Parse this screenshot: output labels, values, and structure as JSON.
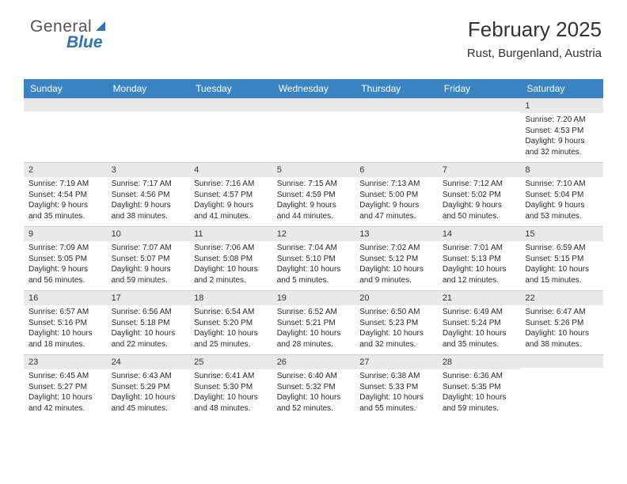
{
  "logo": {
    "text1": "General",
    "text2": "Blue"
  },
  "title": "February 2025",
  "subtitle": "Rust, Burgenland, Austria",
  "colors": {
    "header_bg": "#3b84c4",
    "header_fg": "#ffffff",
    "daynum_bg": "#e9e9e9",
    "page_bg": "#ffffff",
    "logo_blue": "#2d73b5"
  },
  "day_names": [
    "Sunday",
    "Monday",
    "Tuesday",
    "Wednesday",
    "Thursday",
    "Friday",
    "Saturday"
  ],
  "weeks": [
    [
      {
        "n": "",
        "sr": "",
        "ss": "",
        "dl": ""
      },
      {
        "n": "",
        "sr": "",
        "ss": "",
        "dl": ""
      },
      {
        "n": "",
        "sr": "",
        "ss": "",
        "dl": ""
      },
      {
        "n": "",
        "sr": "",
        "ss": "",
        "dl": ""
      },
      {
        "n": "",
        "sr": "",
        "ss": "",
        "dl": ""
      },
      {
        "n": "",
        "sr": "",
        "ss": "",
        "dl": ""
      },
      {
        "n": "1",
        "sr": "Sunrise: 7:20 AM",
        "ss": "Sunset: 4:53 PM",
        "dl": "Daylight: 9 hours and 32 minutes."
      }
    ],
    [
      {
        "n": "2",
        "sr": "Sunrise: 7:19 AM",
        "ss": "Sunset: 4:54 PM",
        "dl": "Daylight: 9 hours and 35 minutes."
      },
      {
        "n": "3",
        "sr": "Sunrise: 7:17 AM",
        "ss": "Sunset: 4:56 PM",
        "dl": "Daylight: 9 hours and 38 minutes."
      },
      {
        "n": "4",
        "sr": "Sunrise: 7:16 AM",
        "ss": "Sunset: 4:57 PM",
        "dl": "Daylight: 9 hours and 41 minutes."
      },
      {
        "n": "5",
        "sr": "Sunrise: 7:15 AM",
        "ss": "Sunset: 4:59 PM",
        "dl": "Daylight: 9 hours and 44 minutes."
      },
      {
        "n": "6",
        "sr": "Sunrise: 7:13 AM",
        "ss": "Sunset: 5:00 PM",
        "dl": "Daylight: 9 hours and 47 minutes."
      },
      {
        "n": "7",
        "sr": "Sunrise: 7:12 AM",
        "ss": "Sunset: 5:02 PM",
        "dl": "Daylight: 9 hours and 50 minutes."
      },
      {
        "n": "8",
        "sr": "Sunrise: 7:10 AM",
        "ss": "Sunset: 5:04 PM",
        "dl": "Daylight: 9 hours and 53 minutes."
      }
    ],
    [
      {
        "n": "9",
        "sr": "Sunrise: 7:09 AM",
        "ss": "Sunset: 5:05 PM",
        "dl": "Daylight: 9 hours and 56 minutes."
      },
      {
        "n": "10",
        "sr": "Sunrise: 7:07 AM",
        "ss": "Sunset: 5:07 PM",
        "dl": "Daylight: 9 hours and 59 minutes."
      },
      {
        "n": "11",
        "sr": "Sunrise: 7:06 AM",
        "ss": "Sunset: 5:08 PM",
        "dl": "Daylight: 10 hours and 2 minutes."
      },
      {
        "n": "12",
        "sr": "Sunrise: 7:04 AM",
        "ss": "Sunset: 5:10 PM",
        "dl": "Daylight: 10 hours and 5 minutes."
      },
      {
        "n": "13",
        "sr": "Sunrise: 7:02 AM",
        "ss": "Sunset: 5:12 PM",
        "dl": "Daylight: 10 hours and 9 minutes."
      },
      {
        "n": "14",
        "sr": "Sunrise: 7:01 AM",
        "ss": "Sunset: 5:13 PM",
        "dl": "Daylight: 10 hours and 12 minutes."
      },
      {
        "n": "15",
        "sr": "Sunrise: 6:59 AM",
        "ss": "Sunset: 5:15 PM",
        "dl": "Daylight: 10 hours and 15 minutes."
      }
    ],
    [
      {
        "n": "16",
        "sr": "Sunrise: 6:57 AM",
        "ss": "Sunset: 5:16 PM",
        "dl": "Daylight: 10 hours and 18 minutes."
      },
      {
        "n": "17",
        "sr": "Sunrise: 6:56 AM",
        "ss": "Sunset: 5:18 PM",
        "dl": "Daylight: 10 hours and 22 minutes."
      },
      {
        "n": "18",
        "sr": "Sunrise: 6:54 AM",
        "ss": "Sunset: 5:20 PM",
        "dl": "Daylight: 10 hours and 25 minutes."
      },
      {
        "n": "19",
        "sr": "Sunrise: 6:52 AM",
        "ss": "Sunset: 5:21 PM",
        "dl": "Daylight: 10 hours and 28 minutes."
      },
      {
        "n": "20",
        "sr": "Sunrise: 6:50 AM",
        "ss": "Sunset: 5:23 PM",
        "dl": "Daylight: 10 hours and 32 minutes."
      },
      {
        "n": "21",
        "sr": "Sunrise: 6:49 AM",
        "ss": "Sunset: 5:24 PM",
        "dl": "Daylight: 10 hours and 35 minutes."
      },
      {
        "n": "22",
        "sr": "Sunrise: 6:47 AM",
        "ss": "Sunset: 5:26 PM",
        "dl": "Daylight: 10 hours and 38 minutes."
      }
    ],
    [
      {
        "n": "23",
        "sr": "Sunrise: 6:45 AM",
        "ss": "Sunset: 5:27 PM",
        "dl": "Daylight: 10 hours and 42 minutes."
      },
      {
        "n": "24",
        "sr": "Sunrise: 6:43 AM",
        "ss": "Sunset: 5:29 PM",
        "dl": "Daylight: 10 hours and 45 minutes."
      },
      {
        "n": "25",
        "sr": "Sunrise: 6:41 AM",
        "ss": "Sunset: 5:30 PM",
        "dl": "Daylight: 10 hours and 48 minutes."
      },
      {
        "n": "26",
        "sr": "Sunrise: 6:40 AM",
        "ss": "Sunset: 5:32 PM",
        "dl": "Daylight: 10 hours and 52 minutes."
      },
      {
        "n": "27",
        "sr": "Sunrise: 6:38 AM",
        "ss": "Sunset: 5:33 PM",
        "dl": "Daylight: 10 hours and 55 minutes."
      },
      {
        "n": "28",
        "sr": "Sunrise: 6:36 AM",
        "ss": "Sunset: 5:35 PM",
        "dl": "Daylight: 10 hours and 59 minutes."
      },
      {
        "n": "",
        "sr": "",
        "ss": "",
        "dl": ""
      }
    ]
  ]
}
